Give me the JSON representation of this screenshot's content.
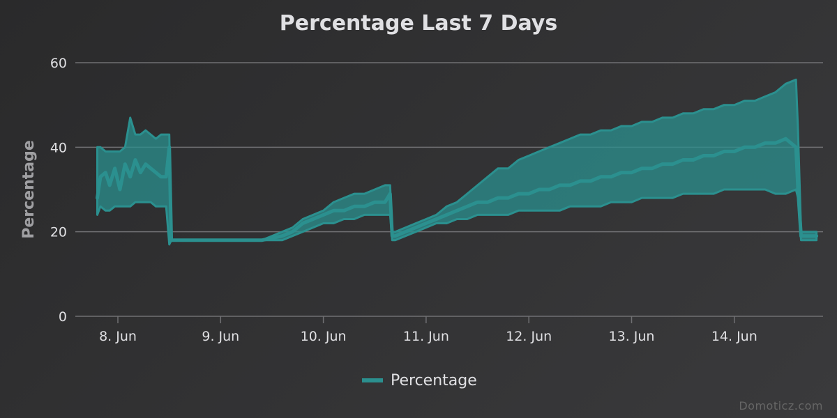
{
  "chart_data": {
    "type": "line",
    "title": "Percentage Last 7 Days",
    "ylabel": "Percentage",
    "xlabel": "",
    "ylim": [
      0,
      60
    ],
    "yticks": [
      "0",
      "20",
      "40",
      "60"
    ],
    "xticks": [
      "8. Jun",
      "9. Jun",
      "10. Jun",
      "11. Jun",
      "12. Jun",
      "13. Jun",
      "14. Jun"
    ],
    "legend_position": "bottom-center",
    "grid": true,
    "series": [
      {
        "name": "Percentage",
        "color": "#2b908f",
        "x": [
          -0.2,
          -0.17,
          -0.12,
          -0.08,
          -0.03,
          0.02,
          0.07,
          0.12,
          0.17,
          0.22,
          0.27,
          0.32,
          0.37,
          0.42,
          0.47,
          0.5,
          0.52,
          0.55,
          0.6,
          0.7,
          0.8,
          0.9,
          1.0,
          1.1,
          1.2,
          1.3,
          1.4,
          1.5,
          1.6,
          1.7,
          1.8,
          1.9,
          2.0,
          2.1,
          2.2,
          2.3,
          2.4,
          2.5,
          2.6,
          2.65,
          2.67,
          2.7,
          2.8,
          2.9,
          3.0,
          3.1,
          3.2,
          3.3,
          3.4,
          3.5,
          3.6,
          3.7,
          3.8,
          3.9,
          4.0,
          4.1,
          4.2,
          4.3,
          4.4,
          4.5,
          4.6,
          4.7,
          4.8,
          4.9,
          5.0,
          5.1,
          5.2,
          5.3,
          5.4,
          5.5,
          5.6,
          5.7,
          5.8,
          5.9,
          6.0,
          6.1,
          6.2,
          6.3,
          6.4,
          6.5,
          6.6,
          6.62,
          6.65,
          6.7,
          6.75,
          6.8
        ],
        "y": [
          28,
          33,
          34,
          31,
          35,
          30,
          36,
          33,
          37,
          34,
          36,
          35,
          34,
          33,
          33,
          40,
          18,
          18,
          18,
          18,
          18,
          18,
          18,
          18,
          18,
          18,
          18,
          18.5,
          19,
          20,
          22,
          23,
          24,
          25,
          25,
          26,
          26,
          27,
          27,
          29,
          19,
          19,
          20,
          21,
          22,
          23,
          24,
          25,
          26,
          27,
          27,
          28,
          28,
          29,
          29,
          30,
          30,
          31,
          31,
          32,
          32,
          33,
          33,
          34,
          34,
          35,
          35,
          36,
          36,
          37,
          37,
          38,
          38,
          39,
          39,
          40,
          40,
          41,
          41,
          42,
          40,
          30,
          19,
          19,
          19,
          19
        ],
        "lo": [
          24,
          26,
          25,
          25,
          26,
          26,
          26,
          26,
          27,
          27,
          27,
          27,
          26,
          26,
          26,
          17,
          18,
          18,
          18,
          18,
          18,
          18,
          18,
          18,
          18,
          18,
          18,
          18,
          18,
          19,
          20,
          21,
          22,
          22,
          23,
          23,
          24,
          24,
          24,
          24,
          18,
          18,
          19,
          20,
          21,
          22,
          22,
          23,
          23,
          24,
          24,
          24,
          24,
          25,
          25,
          25,
          25,
          25,
          26,
          26,
          26,
          26,
          27,
          27,
          27,
          28,
          28,
          28,
          28,
          29,
          29,
          29,
          29,
          30,
          30,
          30,
          30,
          30,
          29,
          29,
          30,
          28,
          18,
          18,
          18,
          18
        ],
        "hi": [
          40,
          40,
          39,
          39,
          39,
          39,
          40,
          47,
          43,
          43,
          44,
          43,
          42,
          43,
          43,
          43,
          18,
          18,
          18,
          18,
          18,
          18,
          18,
          18,
          18,
          18,
          18,
          19,
          20,
          21,
          23,
          24,
          25,
          27,
          28,
          29,
          29,
          30,
          31,
          31,
          20,
          20,
          21,
          22,
          23,
          24,
          26,
          27,
          29,
          31,
          33,
          35,
          35,
          37,
          38,
          39,
          40,
          41,
          42,
          43,
          43,
          44,
          44,
          45,
          45,
          46,
          46,
          47,
          47,
          48,
          48,
          49,
          49,
          50,
          50,
          51,
          51,
          52,
          53,
          55,
          56,
          44,
          20,
          20,
          20,
          20
        ]
      }
    ]
  },
  "credits": "Domoticz.com"
}
